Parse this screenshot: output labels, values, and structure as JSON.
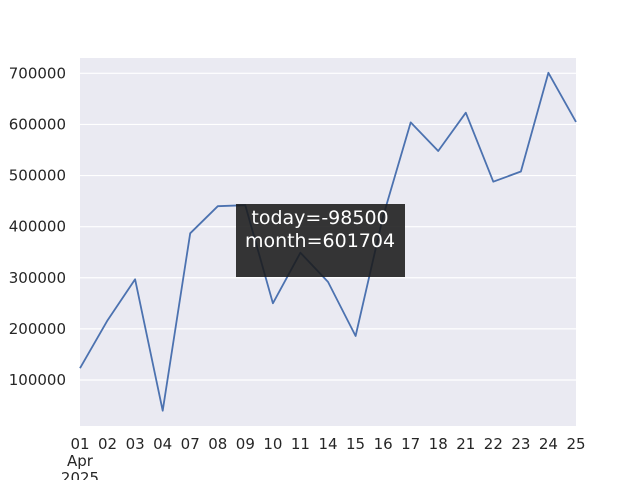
{
  "chart_data": {
    "type": "line",
    "categories": [
      "01\nApr\n2025",
      "02",
      "03",
      "04",
      "07",
      "08",
      "09",
      "10",
      "11",
      "14",
      "15",
      "16",
      "17",
      "18",
      "21",
      "22",
      "23",
      "24",
      "25"
    ],
    "series": [
      {
        "values": [
          123000,
          217000,
          297000,
          40000,
          387000,
          440000,
          442000,
          250000,
          349000,
          292000,
          186000,
          420000,
          604000,
          548000,
          623000,
          488000,
          508000,
          701000,
          605000
        ],
        "color": "#4c72b0"
      }
    ],
    "ylim": [
      10000,
      730000
    ],
    "yticks": [
      100000,
      200000,
      300000,
      400000,
      500000,
      600000,
      700000
    ],
    "ytick_labels": [
      "100000",
      "200000",
      "300000",
      "400000",
      "500000",
      "600000",
      "700000"
    ],
    "grid": true,
    "background": "#eaeaf2",
    "annotation": {
      "lines": [
        "today=-98500",
        "month=601704"
      ],
      "background": "#1a1a1a"
    }
  }
}
